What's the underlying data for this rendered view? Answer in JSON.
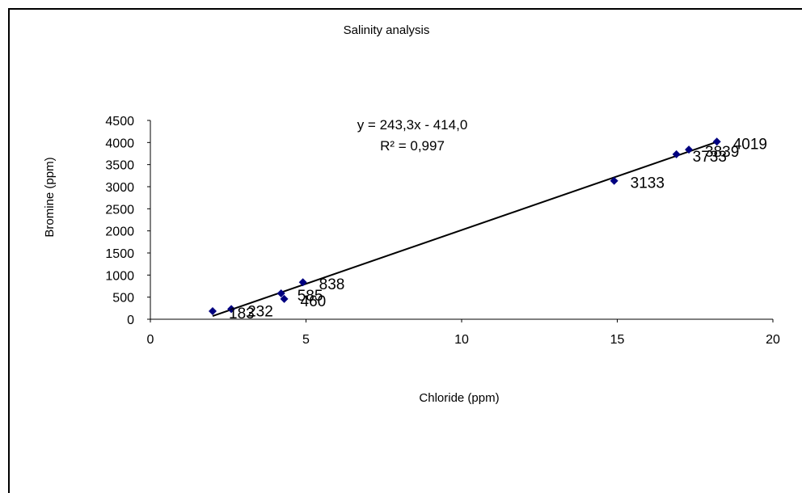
{
  "chart_data": {
    "type": "scatter",
    "title": "Salinity analysis",
    "xlabel": "Chloride (ppm)",
    "ylabel": "Bromine (ppm)",
    "xlim": [
      0,
      20
    ],
    "ylim": [
      0,
      4500
    ],
    "xticks": [
      0,
      5,
      10,
      15,
      20
    ],
    "yticks": [
      0,
      500,
      1000,
      1500,
      2000,
      2500,
      3000,
      3500,
      4000,
      4500
    ],
    "marker_color": "#000080",
    "grid": false,
    "legend": false,
    "points": [
      {
        "x": 2.0,
        "y": 183,
        "label": "183"
      },
      {
        "x": 2.6,
        "y": 232,
        "label": "232"
      },
      {
        "x": 4.3,
        "y": 460,
        "label": "460"
      },
      {
        "x": 4.2,
        "y": 585,
        "label": "585"
      },
      {
        "x": 4.9,
        "y": 838,
        "label": "838"
      },
      {
        "x": 14.9,
        "y": 3133,
        "label": "3133"
      },
      {
        "x": 16.9,
        "y": 3733,
        "label": "3733"
      },
      {
        "x": 17.3,
        "y": 3839,
        "label": "3839"
      },
      {
        "x": 18.2,
        "y": 4019,
        "label": "4019"
      }
    ],
    "trendline": {
      "slope": 243.3,
      "intercept": -414.0,
      "x_range": [
        2.0,
        18.2
      ],
      "equation": "y = 243,3x - 414,0",
      "r2": "R² = 0,997"
    }
  }
}
